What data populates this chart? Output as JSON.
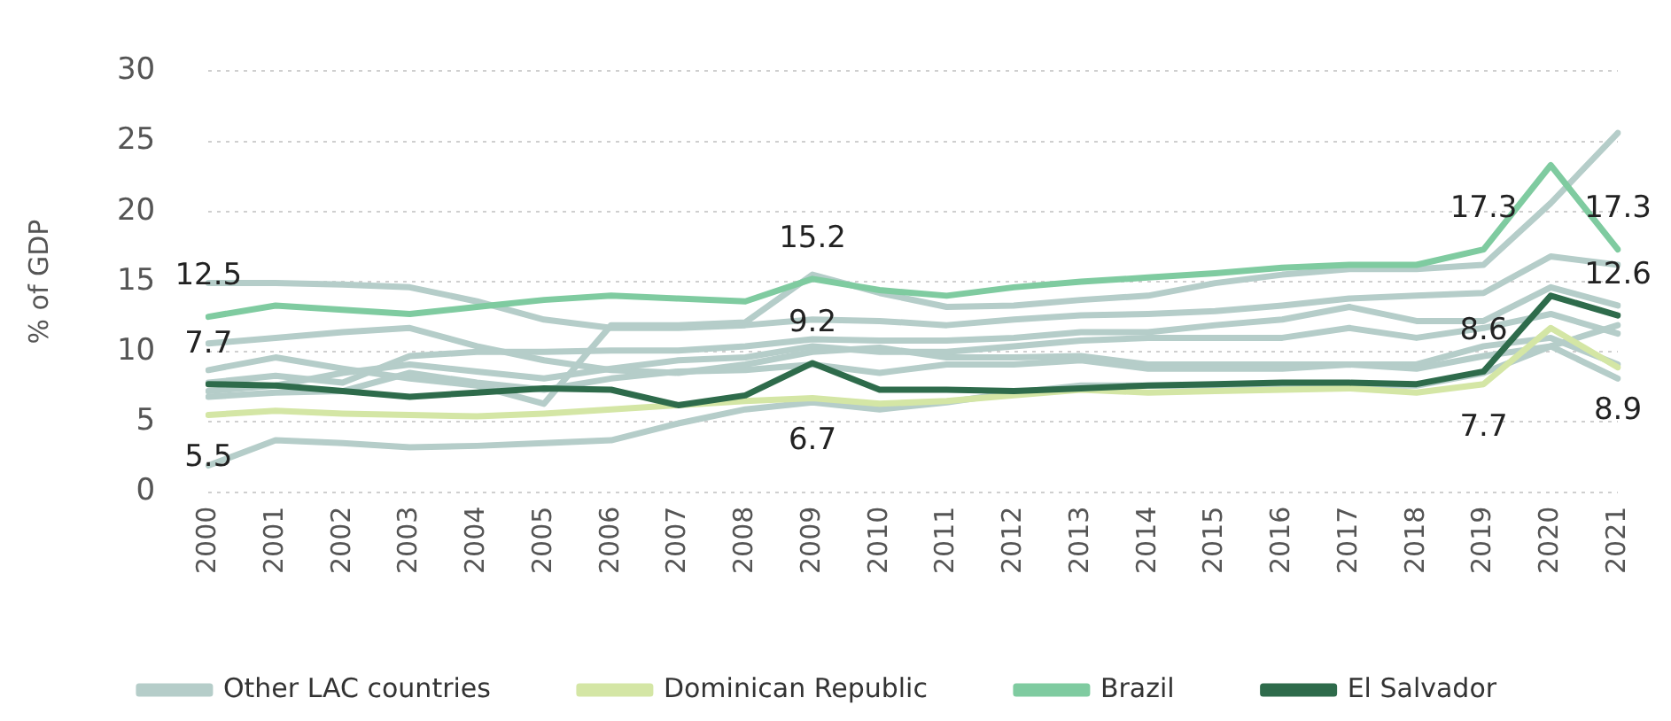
{
  "chart_data": {
    "type": "line",
    "ylabel": "% of GDP",
    "categories": [
      "2000",
      "2001",
      "2002",
      "2003",
      "2004",
      "2005",
      "2006",
      "2007",
      "2008",
      "2009",
      "2010",
      "2011",
      "2012",
      "2013",
      "2014",
      "2015",
      "2016",
      "2017",
      "2018",
      "2019",
      "2020",
      "2021"
    ],
    "ylim": [
      0,
      30
    ],
    "yticks": [
      0,
      5,
      10,
      15,
      20,
      25,
      30
    ],
    "grid": "y",
    "legend": "bottom",
    "marker": "none",
    "line_style": "solid",
    "series": [
      {
        "color": "#b5cdc9",
        "values": [
          14.9,
          14.9,
          14.8,
          14.6,
          13.6,
          12.3,
          11.7,
          11.7,
          11.9,
          12.3,
          12.2,
          11.9,
          12.3,
          12.6,
          12.7,
          12.9,
          13.3,
          13.8,
          14.0,
          14.2,
          16.8,
          16.2
        ]
      },
      {
        "color": "#b5cdc9",
        "values": [
          1.9,
          3.7,
          3.5,
          3.2,
          3.3,
          3.5,
          3.7,
          4.9,
          5.9,
          6.4,
          5.9,
          6.4,
          7.1,
          7.6,
          7.6,
          7.6,
          7.6,
          7.6,
          7.6,
          8.5,
          10.4,
          11.9
        ]
      },
      {
        "color": "#b5cdc9",
        "values": [
          10.6,
          11.0,
          11.4,
          11.7,
          10.4,
          9.4,
          8.7,
          8.5,
          9.1,
          10.0,
          10.3,
          9.6,
          9.6,
          9.7,
          9.1,
          9.1,
          9.1,
          9.1,
          9.1,
          10.4,
          11.0,
          9.1
        ]
      },
      {
        "color": "#b5cdc9",
        "values": [
          8.7,
          9.6,
          8.8,
          8.1,
          7.6,
          6.3,
          11.9,
          11.9,
          12.1,
          15.5,
          14.2,
          13.2,
          13.3,
          13.7,
          14.0,
          14.9,
          15.5,
          15.9,
          15.9,
          16.2,
          20.6,
          25.6
        ]
      },
      {
        "color": "#b5cdc9",
        "values": [
          7.8,
          8.3,
          7.8,
          9.7,
          10.0,
          10.0,
          10.1,
          10.1,
          10.4,
          10.9,
          10.8,
          10.8,
          11.0,
          11.4,
          11.4,
          11.9,
          12.3,
          13.2,
          12.2,
          12.2,
          14.6,
          13.3
        ]
      },
      {
        "color": "#b5cdc9",
        "values": [
          7.2,
          7.6,
          8.5,
          9.1,
          8.6,
          8.1,
          8.8,
          9.4,
          9.6,
          10.4,
          10.0,
          10.0,
          10.4,
          10.8,
          11.0,
          11.0,
          11.0,
          11.7,
          11.0,
          11.7,
          12.7,
          11.3
        ]
      },
      {
        "name": "Other LAC countries",
        "color": "#b5cdc9",
        "values": [
          6.8,
          7.1,
          7.2,
          8.5,
          7.8,
          7.3,
          8.1,
          8.6,
          8.7,
          9.1,
          8.5,
          9.1,
          9.1,
          9.4,
          8.8,
          8.8,
          8.8,
          9.1,
          8.8,
          9.7,
          10.4,
          8.1
        ]
      },
      {
        "name": "Dominican Republic",
        "color": "#d4e6a5",
        "values": [
          5.5,
          5.8,
          5.6,
          5.5,
          5.4,
          5.6,
          5.9,
          6.2,
          6.5,
          6.7,
          6.3,
          6.5,
          6.9,
          7.3,
          7.1,
          7.2,
          7.3,
          7.4,
          7.1,
          7.7,
          11.7,
          8.9
        ],
        "value_labels": [
          "5.5",
          null,
          null,
          null,
          null,
          null,
          null,
          null,
          null,
          "6.7",
          null,
          null,
          null,
          null,
          null,
          null,
          null,
          null,
          null,
          "7.7",
          null,
          "8.9"
        ]
      },
      {
        "name": "Brazil",
        "color": "#7fcba0",
        "values": [
          12.5,
          13.3,
          13.0,
          12.7,
          13.2,
          13.7,
          14.0,
          13.8,
          13.6,
          15.2,
          14.4,
          14.0,
          14.6,
          15.0,
          15.3,
          15.6,
          16.0,
          16.2,
          16.2,
          17.3,
          23.3,
          17.3
        ],
        "value_labels": [
          "12.5",
          null,
          null,
          null,
          null,
          null,
          null,
          null,
          null,
          "15.2",
          null,
          null,
          null,
          null,
          null,
          null,
          null,
          null,
          null,
          "17.3",
          null,
          "17.3"
        ]
      },
      {
        "name": "El Salvador",
        "color": "#2e6b4b",
        "values": [
          7.7,
          7.6,
          7.2,
          6.8,
          7.1,
          7.4,
          7.3,
          6.2,
          6.9,
          9.2,
          7.3,
          7.3,
          7.2,
          7.4,
          7.6,
          7.7,
          7.8,
          7.8,
          7.7,
          8.6,
          14.0,
          12.6
        ],
        "value_labels": [
          "7.7",
          null,
          null,
          null,
          null,
          null,
          null,
          null,
          null,
          "9.2",
          null,
          null,
          null,
          null,
          null,
          null,
          null,
          null,
          null,
          "8.6",
          null,
          "12.6"
        ]
      }
    ]
  }
}
